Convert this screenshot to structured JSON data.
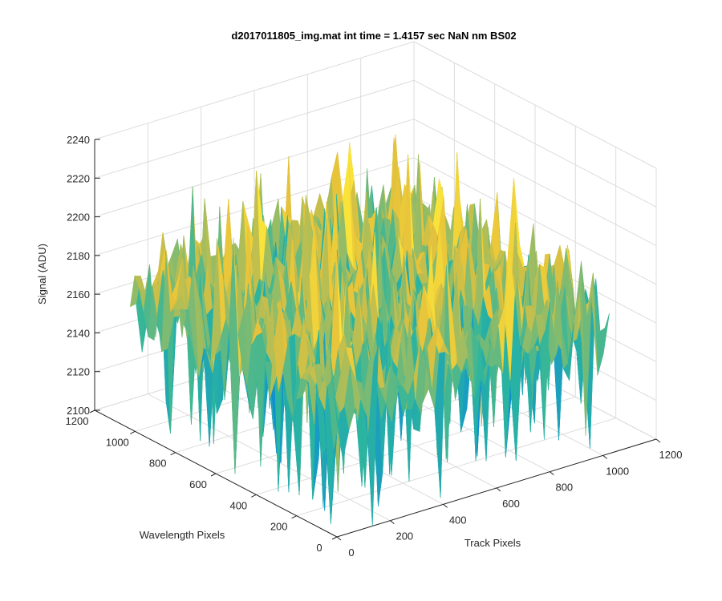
{
  "chart_data": {
    "type": "surface",
    "title": "d2017011805_img.mat int time = 1.4157 sec  NaN nm BS02",
    "xlabel": "Track Pixels",
    "ylabel": "Wavelength Pixels",
    "zlabel": "Signal (ADU)",
    "xlim": [
      0,
      1200
    ],
    "ylim": [
      0,
      1200
    ],
    "zlim": [
      2100,
      2240
    ],
    "xticks": [
      "0",
      "200",
      "400",
      "600",
      "800",
      "1000",
      "1200"
    ],
    "yticks": [
      "0",
      "200",
      "400",
      "600",
      "800",
      "1000",
      "1200"
    ],
    "zticks": [
      "2100",
      "2120",
      "2140",
      "2160",
      "2180",
      "2200",
      "2220",
      "2240"
    ],
    "grid": true,
    "colormap": "parula",
    "surface_summary": {
      "mean_signal": 2170,
      "signal_range": [
        2100,
        2235
      ],
      "noise_amplitude": 25,
      "x_range": [
        0,
        1024
      ],
      "y_range": [
        0,
        1024
      ]
    },
    "colors": {
      "low": "#0f8fd2",
      "mid": "#2bb59f",
      "high": "#e6c13a",
      "peak": "#f9e23a"
    }
  }
}
